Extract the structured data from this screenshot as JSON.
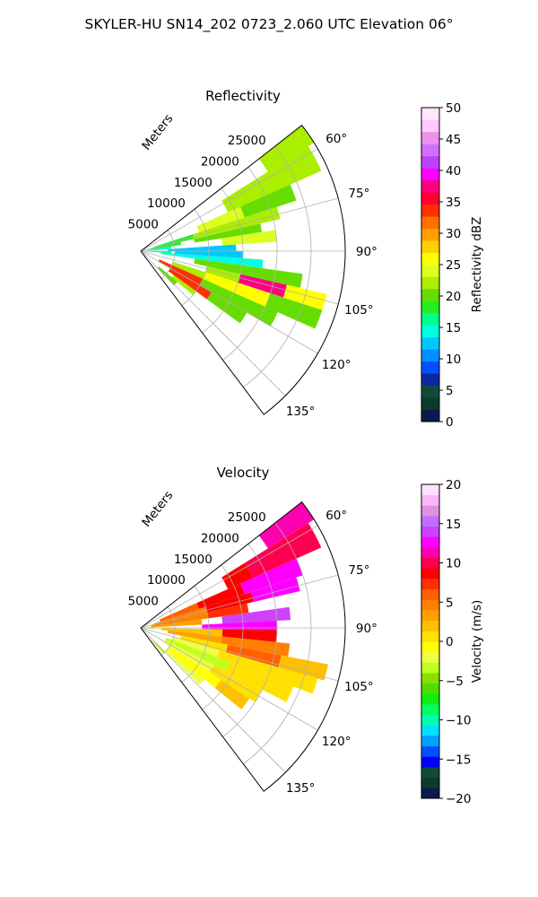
{
  "title": "SKYLER-HU  SN14_202  0723_2.060 UTC Elevation 06°",
  "chart_data": [
    {
      "type": "heatmap",
      "projection": "polar-sector",
      "title": "Reflectivity",
      "radial_label": "Meters",
      "radial_ticks": [
        5000,
        10000,
        15000,
        20000,
        25000
      ],
      "radial_tick_labels": [
        "5000",
        "10000",
        "15000",
        "20000",
        "25000"
      ],
      "rlim": [
        0,
        30000
      ],
      "azimuth_range_deg": [
        52,
        143
      ],
      "azimuth_ticks_deg": [
        60,
        75,
        90,
        105,
        120,
        135
      ],
      "azimuth_tick_labels": [
        "60°",
        "75°",
        "90°",
        "105°",
        "120°",
        "135°"
      ],
      "grid": true,
      "colorbar": {
        "label": "Reflectivity dBZ",
        "min": 0,
        "max": 50,
        "ticks": [
          0,
          5,
          10,
          15,
          20,
          25,
          30,
          35,
          40,
          45,
          50
        ],
        "tick_labels": [
          "0",
          "5",
          "10",
          "15",
          "20",
          "25",
          "30",
          "35",
          "40",
          "45",
          "50"
        ],
        "colors": [
          "#0a1a4a",
          "#0d3a2a",
          "#114a3a",
          "#0a2aa0",
          "#0050ff",
          "#0090ff",
          "#00c8ff",
          "#00ffe0",
          "#00ff8c",
          "#22ee22",
          "#66dd00",
          "#aaee00",
          "#ddff20",
          "#ffff00",
          "#ffd000",
          "#ffa000",
          "#ff7000",
          "#ff3000",
          "#ff0030",
          "#ff0080",
          "#ff00ff",
          "#c040ff",
          "#d070ff",
          "#ee90ee",
          "#ffc8ff",
          "#ffe8ff"
        ]
      },
      "cells": [
        {
          "az": [
            52,
            58
          ],
          "r": [
            22000,
            30000
          ],
          "value": 22
        },
        {
          "az": [
            58,
            66
          ],
          "r": [
            14000,
            29000
          ],
          "value": 23
        },
        {
          "az": [
            66,
            72
          ],
          "r": [
            9000,
            16000
          ],
          "value": 24
        },
        {
          "az": [
            66,
            72
          ],
          "r": [
            16000,
            24000
          ],
          "value": 21
        },
        {
          "az": [
            72,
            77
          ],
          "r": [
            2000,
            8000
          ],
          "value": 19
        },
        {
          "az": [
            72,
            77
          ],
          "r": [
            8000,
            21000
          ],
          "value": 22
        },
        {
          "az": [
            77,
            81
          ],
          "r": [
            1500,
            6000
          ],
          "value": 18
        },
        {
          "az": [
            77,
            81
          ],
          "r": [
            8000,
            18000
          ],
          "value": 20
        },
        {
          "az": [
            81,
            86
          ],
          "r": [
            1000,
            4500
          ],
          "value": 14
        },
        {
          "az": [
            81,
            86
          ],
          "r": [
            12000,
            20000
          ],
          "value": 24
        },
        {
          "az": [
            86,
            90
          ],
          "r": [
            4000,
            14000
          ],
          "value": 12
        },
        {
          "az": [
            90,
            94
          ],
          "r": [
            1000,
            4500
          ],
          "value": 16
        },
        {
          "az": [
            90,
            94
          ],
          "r": [
            5000,
            15000
          ],
          "value": 13
        },
        {
          "az": [
            94,
            98
          ],
          "r": [
            3000,
            18000
          ],
          "value": 14
        },
        {
          "az": [
            98,
            103
          ],
          "r": [
            8000,
            24000
          ],
          "value": 20
        },
        {
          "az": [
            103,
            108
          ],
          "r": [
            10000,
            15000
          ],
          "value": 22
        },
        {
          "az": [
            103,
            108
          ],
          "r": [
            15000,
            22000
          ],
          "value": 38
        },
        {
          "az": [
            103,
            108
          ],
          "r": [
            22000,
            28000
          ],
          "value": 26
        },
        {
          "az": [
            108,
            114
          ],
          "r": [
            5000,
            10000
          ],
          "value": 22
        },
        {
          "az": [
            108,
            114
          ],
          "r": [
            10000,
            20000
          ],
          "value": 26
        },
        {
          "az": [
            108,
            114
          ],
          "r": [
            20000,
            28000
          ],
          "value": 21
        },
        {
          "az": [
            114,
            120
          ],
          "r": [
            3000,
            10000
          ],
          "value": 33
        },
        {
          "az": [
            114,
            120
          ],
          "r": [
            10000,
            22000
          ],
          "value": 21
        },
        {
          "az": [
            120,
            126
          ],
          "r": [
            5000,
            12000
          ],
          "value": 34
        },
        {
          "az": [
            120,
            126
          ],
          "r": [
            12000,
            18000
          ],
          "value": 20
        },
        {
          "az": [
            126,
            130
          ],
          "r": [
            6000,
            10000
          ],
          "value": 22
        },
        {
          "az": [
            130,
            136
          ],
          "r": [
            3500,
            7000
          ],
          "value": 21
        }
      ]
    },
    {
      "type": "heatmap",
      "projection": "polar-sector",
      "title": "Velocity",
      "radial_label": "Meters",
      "radial_ticks": [
        5000,
        10000,
        15000,
        20000,
        25000
      ],
      "radial_tick_labels": [
        "5000",
        "10000",
        "15000",
        "20000",
        "25000"
      ],
      "rlim": [
        0,
        30000
      ],
      "azimuth_range_deg": [
        52,
        143
      ],
      "azimuth_ticks_deg": [
        60,
        75,
        90,
        105,
        120,
        135
      ],
      "azimuth_tick_labels": [
        "60°",
        "75°",
        "90°",
        "105°",
        "120°",
        "135°"
      ],
      "grid": true,
      "colorbar": {
        "label": "Velocity (m/s)",
        "min": -20,
        "max": 20,
        "ticks": [
          -20,
          -15,
          -10,
          -5,
          0,
          5,
          10,
          15,
          20
        ],
        "tick_labels": [
          "−20",
          "−15",
          "−10",
          "−5",
          "0",
          "5",
          "10",
          "15",
          "20"
        ],
        "colors": [
          "#0a1a4a",
          "#0d3a2a",
          "#114a3a",
          "#0000ff",
          "#0050ff",
          "#00a0ff",
          "#00e0ff",
          "#00ffb0",
          "#00ff60",
          "#10ee10",
          "#50dd00",
          "#88e000",
          "#c0ff20",
          "#f0ff40",
          "#ffff00",
          "#ffe000",
          "#ffc000",
          "#ffa000",
          "#ff8000",
          "#ff6000",
          "#ff3000",
          "#ff0000",
          "#ff0050",
          "#ff00b0",
          "#ff00ff",
          "#d040ff",
          "#c070ff",
          "#e090e0",
          "#f8b8f8",
          "#ffe0ff"
        ]
      },
      "cells": [
        {
          "az": [
            52,
            58
          ],
          "r": [
            22000,
            30000
          ],
          "value": 11
        },
        {
          "az": [
            58,
            66
          ],
          "r": [
            18000,
            29000
          ],
          "value": 10
        },
        {
          "az": [
            58,
            66
          ],
          "r": [
            14000,
            18000
          ],
          "value": 8
        },
        {
          "az": [
            66,
            72
          ],
          "r": [
            3000,
            9000
          ],
          "value": 6
        },
        {
          "az": [
            66,
            72
          ],
          "r": [
            9000,
            16000
          ],
          "value": 8
        },
        {
          "az": [
            66,
            72
          ],
          "r": [
            16000,
            25000
          ],
          "value": 12
        },
        {
          "az": [
            72,
            77
          ],
          "r": [
            2000,
            10000
          ],
          "value": 5
        },
        {
          "az": [
            72,
            77
          ],
          "r": [
            10000,
            17000
          ],
          "value": 9
        },
        {
          "az": [
            72,
            77
          ],
          "r": [
            17000,
            24000
          ],
          "value": 13
        },
        {
          "az": [
            77,
            82
          ],
          "r": [
            1500,
            10000
          ],
          "value": 4
        },
        {
          "az": [
            77,
            82
          ],
          "r": [
            10000,
            16000
          ],
          "value": 7
        },
        {
          "az": [
            82,
            87
          ],
          "r": [
            1500,
            9000
          ],
          "value": 3
        },
        {
          "az": [
            82,
            87
          ],
          "r": [
            12000,
            22000
          ],
          "value": 14
        },
        {
          "az": [
            87,
            91
          ],
          "r": [
            9000,
            20000
          ],
          "value": 13
        },
        {
          "az": [
            91,
            96
          ],
          "r": [
            3000,
            12000
          ],
          "value": 2
        },
        {
          "az": [
            91,
            96
          ],
          "r": [
            12000,
            20000
          ],
          "value": 9
        },
        {
          "az": [
            96,
            101
          ],
          "r": [
            4000,
            12000
          ],
          "value": 3
        },
        {
          "az": [
            96,
            101
          ],
          "r": [
            12000,
            22000
          ],
          "value": 5
        },
        {
          "az": [
            101,
            106
          ],
          "r": [
            6000,
            13000
          ],
          "value": 1
        },
        {
          "az": [
            101,
            106
          ],
          "r": [
            13000,
            21000
          ],
          "value": 6
        },
        {
          "az": [
            101,
            106
          ],
          "r": [
            21000,
            28000
          ],
          "value": 2
        },
        {
          "az": [
            106,
            111
          ],
          "r": [
            5000,
            12000
          ],
          "value": -2
        },
        {
          "az": [
            106,
            111
          ],
          "r": [
            12000,
            27000
          ],
          "value": 1
        },
        {
          "az": [
            111,
            117
          ],
          "r": [
            4000,
            14000
          ],
          "value": -3
        },
        {
          "az": [
            111,
            117
          ],
          "r": [
            14000,
            24000
          ],
          "value": 1
        },
        {
          "az": [
            117,
            123
          ],
          "r": [
            4000,
            12000
          ],
          "value": -2
        },
        {
          "az": [
            117,
            123
          ],
          "r": [
            12000,
            20000
          ],
          "value": 1
        },
        {
          "az": [
            123,
            129
          ],
          "r": [
            5000,
            14000
          ],
          "value": -1
        },
        {
          "az": [
            123,
            129
          ],
          "r": [
            14000,
            19000
          ],
          "value": 2
        },
        {
          "az": [
            129,
            134
          ],
          "r": [
            5000,
            12000
          ],
          "value": -2
        },
        {
          "az": [
            134,
            139
          ],
          "r": [
            2500,
            5000
          ],
          "value": -4
        },
        {
          "az": [
            88,
            95
          ],
          "r": [
            0,
            2000
          ],
          "value": -4
        }
      ]
    }
  ]
}
